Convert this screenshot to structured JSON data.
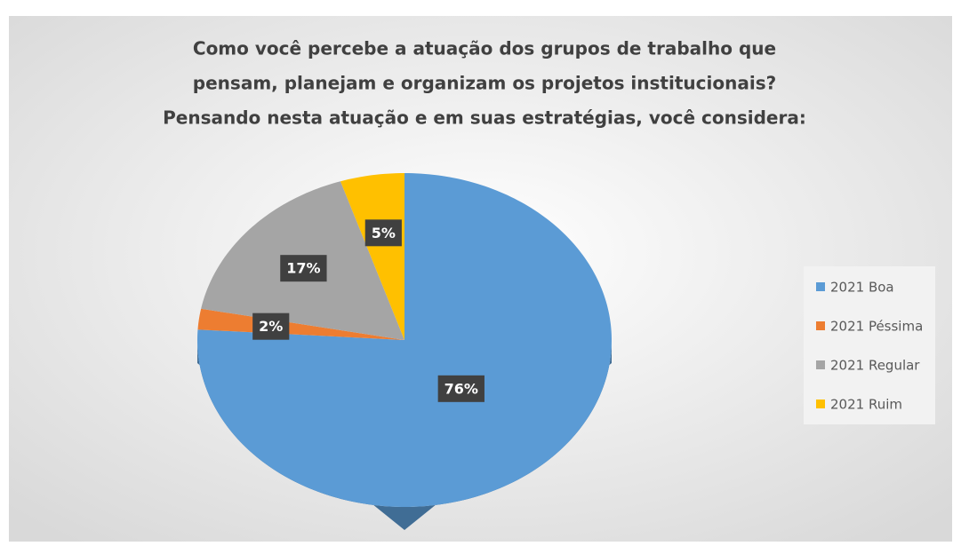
{
  "chart_data": {
    "type": "pie",
    "title": [
      "Como você percebe a atuação dos grupos de trabalho que",
      "pensam, planejam e organizam os projetos institucionais?",
      "Pensando nesta atuação e em suas estratégias, você considera:"
    ],
    "categories": [
      "2021 Boa",
      "2021 Péssima",
      "2021 Regular",
      "2021 Ruim"
    ],
    "values": [
      76,
      2,
      17,
      5
    ],
    "value_labels": [
      "76%",
      "2%",
      "17%",
      "5%"
    ],
    "colors": [
      "#5b9bd5",
      "#ed7d31",
      "#a5a5a5",
      "#ffc000"
    ],
    "legend": "right"
  }
}
